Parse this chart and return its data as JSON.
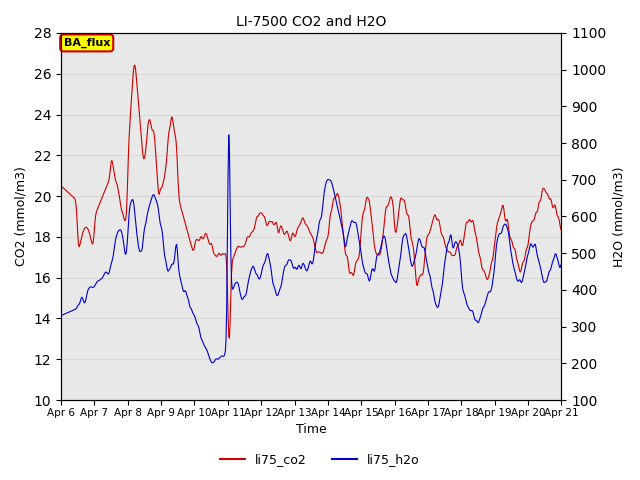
{
  "title": "LI-7500 CO2 and H2O",
  "xlabel": "Time",
  "ylabel_left": "CO2 (mmol/m3)",
  "ylabel_right": "H2O (mmol/m3)",
  "ylim_left": [
    10,
    28
  ],
  "ylim_right": [
    100,
    1100
  ],
  "yticks_left": [
    10,
    12,
    14,
    16,
    18,
    20,
    22,
    24,
    26,
    28
  ],
  "yticks_right": [
    100,
    200,
    300,
    400,
    500,
    600,
    700,
    800,
    900,
    1000,
    1100
  ],
  "xtick_labels": [
    "Apr 6",
    "Apr 7",
    "Apr 8",
    "Apr 9",
    "Apr 10",
    "Apr 11",
    "Apr 12",
    "Apr 13",
    "Apr 14",
    "Apr 15",
    "Apr 16",
    "Apr 17",
    "Apr 18",
    "Apr 19",
    "Apr 20",
    "Apr 21"
  ],
  "legend_label_co2": "li75_co2",
  "legend_label_h2o": "li75_h2o",
  "color_co2": "#cc0000",
  "color_h2o": "#0000cc",
  "annotation_text": "BA_flux",
  "annotation_bg": "#ffff00",
  "annotation_edge": "#cc0000",
  "grid_color": "#d8d8d8",
  "background_color": "#e8e8e8",
  "linewidth": 0.8
}
